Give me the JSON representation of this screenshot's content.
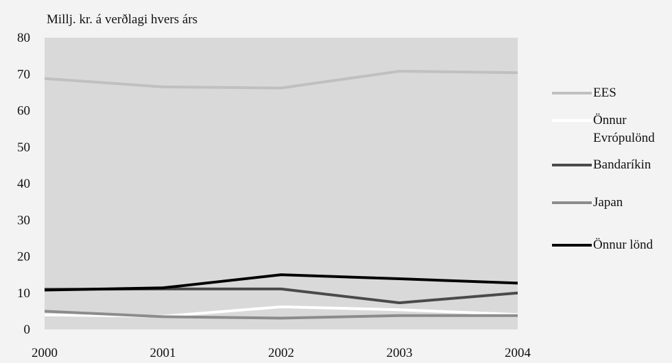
{
  "chart_data": {
    "type": "line",
    "title": "",
    "ylabel": "Millj. kr. á verðlagi hvers árs",
    "xlabel": "",
    "x": [
      "2000",
      "2001",
      "2002",
      "2003",
      "2004"
    ],
    "ylim": [
      0,
      80
    ],
    "yticks": [
      "0",
      "10",
      "20",
      "30",
      "40",
      "50",
      "60",
      "70",
      "80"
    ],
    "grid": false,
    "legend_position": "right",
    "plot_background": "#d9d9d9",
    "series": [
      {
        "name": "EES",
        "color": "#c0c0c0",
        "values": [
          68.8,
          66.5,
          66.2,
          70.8,
          70.4
        ]
      },
      {
        "name": "Önnur Evrópulönd",
        "color": "#ffffff",
        "values": [
          4.0,
          3.6,
          6.2,
          5.4,
          4.1
        ]
      },
      {
        "name": "Bandaríkin",
        "color": "#4a4a4a",
        "values": [
          11.0,
          11.1,
          11.1,
          7.3,
          10.0
        ]
      },
      {
        "name": "Japan",
        "color": "#8c8c8c",
        "values": [
          5.0,
          3.5,
          3.1,
          3.8,
          3.8
        ]
      },
      {
        "name": "Önnur lönd",
        "color": "#000000",
        "values": [
          10.8,
          11.4,
          15.0,
          13.9,
          12.7
        ]
      }
    ]
  }
}
